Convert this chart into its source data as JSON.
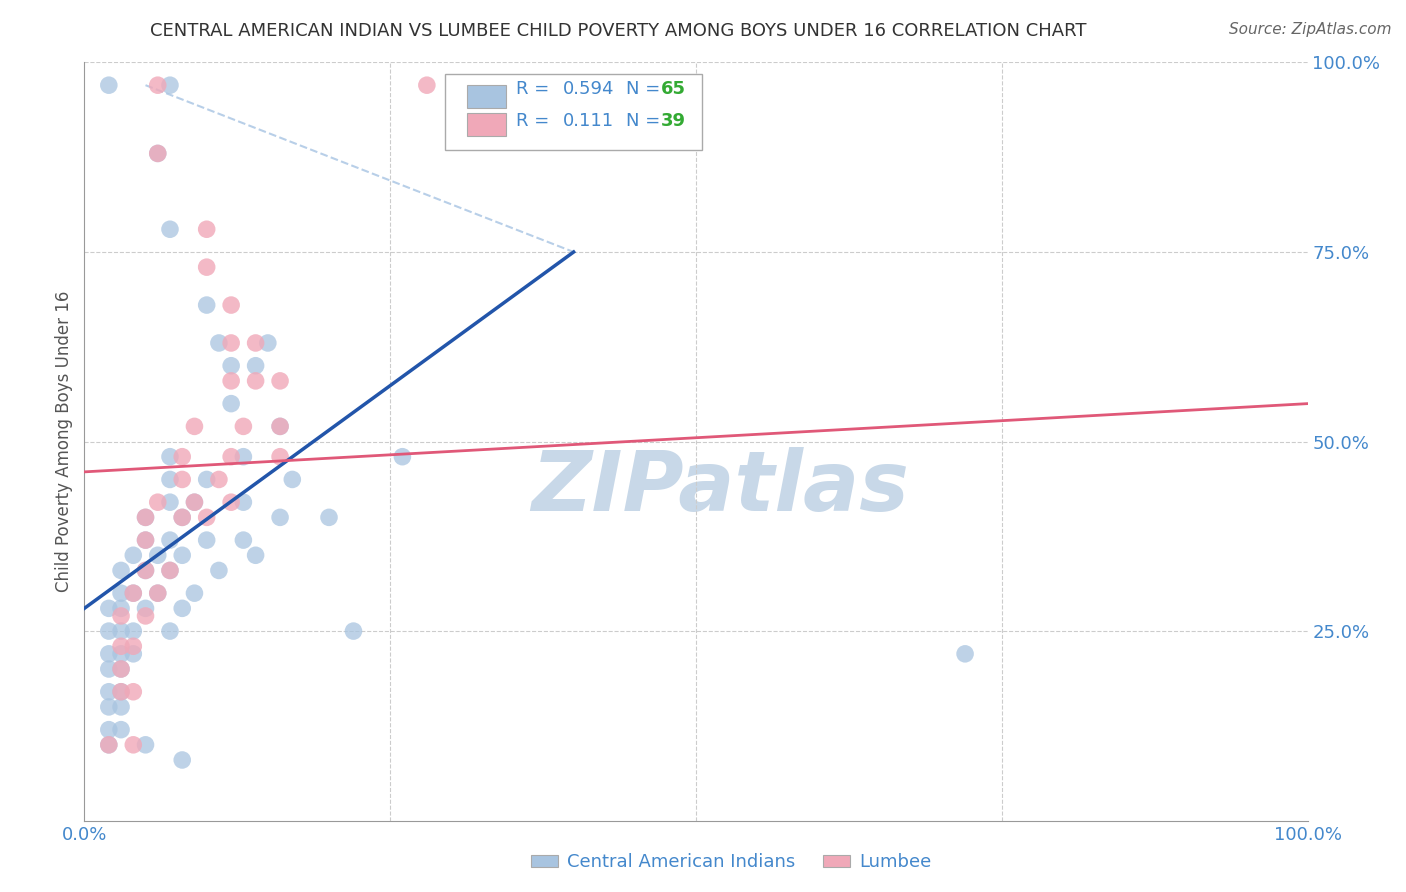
{
  "title": "CENTRAL AMERICAN INDIAN VS LUMBEE CHILD POVERTY AMONG BOYS UNDER 16 CORRELATION CHART",
  "source": "Source: ZipAtlas.com",
  "ylabel": "Child Poverty Among Boys Under 16",
  "r_blue": 0.594,
  "n_blue": 65,
  "r_pink": 0.111,
  "n_pink": 39,
  "blue_color": "#a8c4e0",
  "pink_color": "#f0a8b8",
  "blue_line_color": "#2255aa",
  "pink_line_color": "#e05878",
  "diag_line_color": "#b8cfe8",
  "title_color": "#333333",
  "axis_label_color": "#4488cc",
  "watermark_color": "#c8d8e8",
  "legend_r_color": "#4488cc",
  "legend_n_color": "#33aa33",
  "background_color": "#ffffff",
  "grid_color": "#cccccc",
  "blue_scatter": [
    [
      0.02,
      0.97
    ],
    [
      0.07,
      0.97
    ],
    [
      0.32,
      0.97
    ],
    [
      0.06,
      0.88
    ],
    [
      0.07,
      0.78
    ],
    [
      0.1,
      0.68
    ],
    [
      0.11,
      0.63
    ],
    [
      0.15,
      0.63
    ],
    [
      0.12,
      0.6
    ],
    [
      0.14,
      0.6
    ],
    [
      0.12,
      0.55
    ],
    [
      0.16,
      0.52
    ],
    [
      0.07,
      0.48
    ],
    [
      0.13,
      0.48
    ],
    [
      0.26,
      0.48
    ],
    [
      0.07,
      0.45
    ],
    [
      0.1,
      0.45
    ],
    [
      0.17,
      0.45
    ],
    [
      0.07,
      0.42
    ],
    [
      0.09,
      0.42
    ],
    [
      0.13,
      0.42
    ],
    [
      0.05,
      0.4
    ],
    [
      0.08,
      0.4
    ],
    [
      0.16,
      0.4
    ],
    [
      0.2,
      0.4
    ],
    [
      0.05,
      0.37
    ],
    [
      0.07,
      0.37
    ],
    [
      0.1,
      0.37
    ],
    [
      0.13,
      0.37
    ],
    [
      0.04,
      0.35
    ],
    [
      0.06,
      0.35
    ],
    [
      0.08,
      0.35
    ],
    [
      0.14,
      0.35
    ],
    [
      0.03,
      0.33
    ],
    [
      0.05,
      0.33
    ],
    [
      0.07,
      0.33
    ],
    [
      0.11,
      0.33
    ],
    [
      0.03,
      0.3
    ],
    [
      0.04,
      0.3
    ],
    [
      0.06,
      0.3
    ],
    [
      0.09,
      0.3
    ],
    [
      0.02,
      0.28
    ],
    [
      0.03,
      0.28
    ],
    [
      0.05,
      0.28
    ],
    [
      0.08,
      0.28
    ],
    [
      0.02,
      0.25
    ],
    [
      0.03,
      0.25
    ],
    [
      0.04,
      0.25
    ],
    [
      0.07,
      0.25
    ],
    [
      0.02,
      0.22
    ],
    [
      0.03,
      0.22
    ],
    [
      0.04,
      0.22
    ],
    [
      0.02,
      0.2
    ],
    [
      0.03,
      0.2
    ],
    [
      0.02,
      0.17
    ],
    [
      0.03,
      0.17
    ],
    [
      0.02,
      0.15
    ],
    [
      0.03,
      0.15
    ],
    [
      0.02,
      0.12
    ],
    [
      0.03,
      0.12
    ],
    [
      0.02,
      0.1
    ],
    [
      0.05,
      0.1
    ],
    [
      0.08,
      0.08
    ],
    [
      0.72,
      0.22
    ],
    [
      0.22,
      0.25
    ]
  ],
  "pink_scatter": [
    [
      0.06,
      0.97
    ],
    [
      0.28,
      0.97
    ],
    [
      0.06,
      0.88
    ],
    [
      0.1,
      0.78
    ],
    [
      0.1,
      0.73
    ],
    [
      0.12,
      0.68
    ],
    [
      0.12,
      0.63
    ],
    [
      0.14,
      0.63
    ],
    [
      0.12,
      0.58
    ],
    [
      0.14,
      0.58
    ],
    [
      0.16,
      0.58
    ],
    [
      0.09,
      0.52
    ],
    [
      0.13,
      0.52
    ],
    [
      0.16,
      0.52
    ],
    [
      0.08,
      0.48
    ],
    [
      0.12,
      0.48
    ],
    [
      0.16,
      0.48
    ],
    [
      0.08,
      0.45
    ],
    [
      0.11,
      0.45
    ],
    [
      0.06,
      0.42
    ],
    [
      0.09,
      0.42
    ],
    [
      0.12,
      0.42
    ],
    [
      0.05,
      0.4
    ],
    [
      0.08,
      0.4
    ],
    [
      0.1,
      0.4
    ],
    [
      0.05,
      0.37
    ],
    [
      0.05,
      0.33
    ],
    [
      0.07,
      0.33
    ],
    [
      0.04,
      0.3
    ],
    [
      0.06,
      0.3
    ],
    [
      0.03,
      0.27
    ],
    [
      0.05,
      0.27
    ],
    [
      0.03,
      0.23
    ],
    [
      0.04,
      0.23
    ],
    [
      0.03,
      0.2
    ],
    [
      0.03,
      0.17
    ],
    [
      0.04,
      0.17
    ],
    [
      0.02,
      0.1
    ],
    [
      0.04,
      0.1
    ]
  ],
  "blue_line": [
    [
      0.0,
      0.28
    ],
    [
      0.4,
      0.75
    ]
  ],
  "pink_line": [
    [
      0.0,
      0.46
    ],
    [
      1.0,
      0.55
    ]
  ],
  "diag_line": [
    [
      0.05,
      0.97
    ],
    [
      0.4,
      0.75
    ]
  ],
  "xlim": [
    0.0,
    1.0
  ],
  "ylim": [
    0.0,
    1.0
  ],
  "ytick_labels_right": [
    "100.0%",
    "75.0%",
    "50.0%",
    "25.0%"
  ],
  "ytick_positions_right": [
    1.0,
    0.75,
    0.5,
    0.25
  ],
  "legend_labels": [
    "Central American Indians",
    "Lumbee"
  ]
}
